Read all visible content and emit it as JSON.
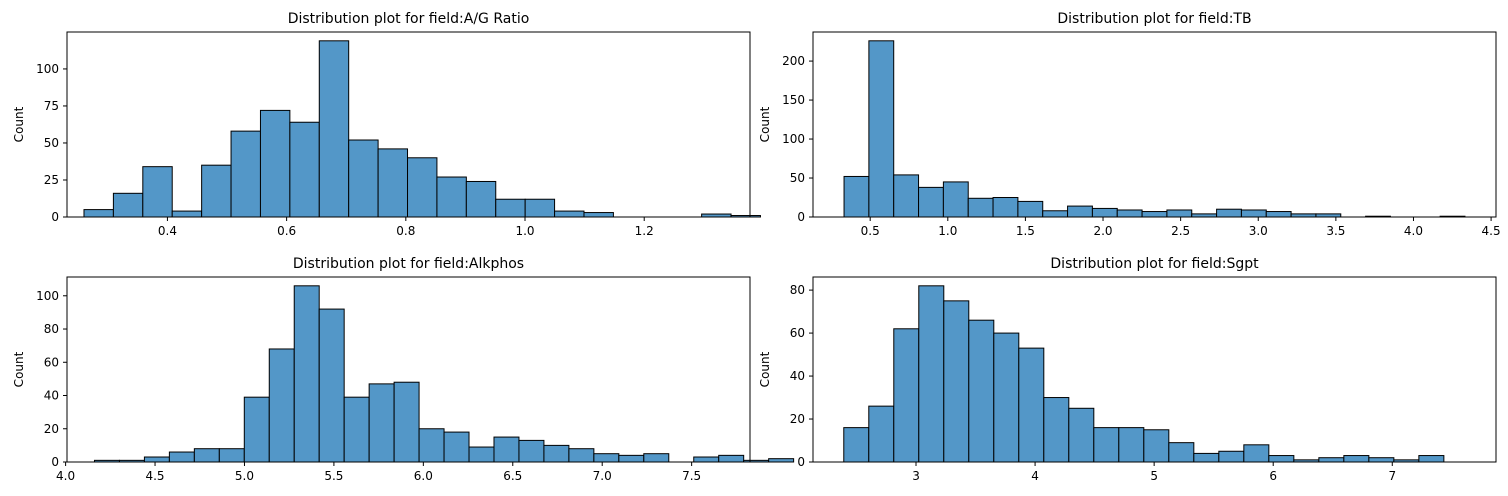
{
  "colors": {
    "bar_fill": "#5397c8",
    "bar_edge": "#000000",
    "axis": "#000000",
    "background": "#ffffff"
  },
  "chart_data": [
    {
      "type": "bar",
      "title": "Distribution plot for field:A/G Ratio",
      "xlabel": "",
      "ylabel": "Count",
      "xlim": [
        0.2315,
        1.3775
      ],
      "ylim": [
        0,
        124.95
      ],
      "xticks": [
        0.4,
        0.6,
        0.8,
        1.0,
        1.2
      ],
      "xtick_labels": [
        "0.4",
        "0.6",
        "0.8",
        "1.0",
        "1.2"
      ],
      "yticks": [
        0,
        25,
        50,
        75,
        100
      ],
      "ytick_labels": [
        "0",
        "25",
        "50",
        "75",
        "100"
      ],
      "grid": false,
      "bin_start": 0.26,
      "bin_width": 0.04935,
      "values": [
        5,
        16,
        34,
        4,
        35,
        58,
        72,
        64,
        119,
        52,
        46,
        40,
        27,
        24,
        12,
        12,
        4,
        3,
        0,
        0,
        0,
        2,
        1
      ]
    },
    {
      "type": "bar",
      "title": "Distribution plot for field:TB",
      "xlabel": "",
      "ylabel": "Count",
      "xlim": [
        0.1316,
        4.5316
      ],
      "ylim": [
        0,
        237.3
      ],
      "xticks": [
        0.5,
        1.0,
        1.5,
        2.0,
        2.5,
        3.0,
        3.5,
        4.0,
        4.5
      ],
      "xtick_labels": [
        "0.5",
        "1.0",
        "1.5",
        "2.0",
        "2.5",
        "3.0",
        "3.5",
        "4.0",
        "4.5"
      ],
      "yticks": [
        0,
        50,
        100,
        150,
        200
      ],
      "ytick_labels": [
        "0",
        "50",
        "100",
        "150",
        "200"
      ],
      "grid": false,
      "bin_start": 0.3316,
      "bin_width": 0.16,
      "values": [
        52,
        226,
        54,
        38,
        45,
        24,
        25,
        20,
        8,
        14,
        11,
        9,
        7,
        9,
        4,
        10,
        9,
        7,
        4,
        4,
        0,
        1,
        0,
        0,
        1
      ]
    },
    {
      "type": "bar",
      "title": "Distribution plot for field:Alkphos",
      "xlabel": "",
      "ylabel": "Count",
      "xlim": [
        4.0078,
        7.8263
      ],
      "ylim": [
        0,
        111.3
      ],
      "xticks": [
        4.0,
        4.5,
        5.0,
        5.5,
        6.0,
        6.5,
        7.0,
        7.5
      ],
      "xtick_labels": [
        "4.0",
        "4.5",
        "5.0",
        "5.5",
        "6.0",
        "6.5",
        "7.0",
        "7.5"
      ],
      "yticks": [
        0,
        20,
        40,
        60,
        80,
        100
      ],
      "ytick_labels": [
        "0",
        "20",
        "40",
        "60",
        "80",
        "100"
      ],
      "grid": false,
      "bin_start": 4.1614,
      "bin_width": 0.1396,
      "values": [
        1,
        1,
        3,
        6,
        8,
        8,
        39,
        68,
        106,
        92,
        39,
        47,
        48,
        20,
        18,
        9,
        15,
        13,
        10,
        8,
        5,
        4,
        5,
        0,
        3,
        4,
        1,
        2
      ]
    },
    {
      "type": "bar",
      "title": "Distribution plot for field:Sgpt",
      "xlabel": "",
      "ylabel": "Count",
      "xlim": [
        2.1348,
        7.8712
      ],
      "ylim": [
        0,
        86.1
      ],
      "xticks": [
        3,
        4,
        5,
        6,
        7
      ],
      "xtick_labels": [
        "3",
        "4",
        "5",
        "6",
        "7"
      ],
      "yticks": [
        0,
        20,
        40,
        60,
        80
      ],
      "ytick_labels": [
        "0",
        "20",
        "40",
        "60",
        "80"
      ],
      "grid": false,
      "bin_start": 2.3933,
      "bin_width": 0.21,
      "values": [
        16,
        26,
        62,
        82,
        75,
        66,
        60,
        53,
        30,
        25,
        16,
        16,
        15,
        9,
        4,
        5,
        8,
        3,
        1,
        2,
        3,
        2,
        1,
        3
      ]
    }
  ]
}
